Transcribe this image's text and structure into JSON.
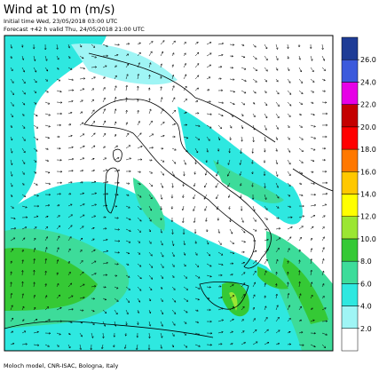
{
  "header": {
    "title": "Wind at 10 m (m/s)",
    "initial_time": "Initial time  Wed, 23/05/2018 03:00 UTC",
    "forecast": "Forecast +42 h valid  Thu, 24/05/2018 21:00 UTC"
  },
  "colorbar": {
    "ticks": [
      {
        "value": 2,
        "label": "2.0"
      },
      {
        "value": 4,
        "label": "4.0"
      },
      {
        "value": 6,
        "label": "6.0"
      },
      {
        "value": 8,
        "label": "8.0"
      },
      {
        "value": 10,
        "label": "10.0"
      },
      {
        "value": 12,
        "label": "12.0"
      },
      {
        "value": 14,
        "label": "14.0"
      },
      {
        "value": 16,
        "label": "16.0"
      },
      {
        "value": 18,
        "label": "18.0"
      },
      {
        "value": 20,
        "label": "20.0"
      },
      {
        "value": 22,
        "label": "22.0"
      },
      {
        "value": 24,
        "label": "24.0"
      },
      {
        "value": 26,
        "label": "26.0"
      }
    ],
    "colors": [
      "#ffffff",
      "#9ff5f5",
      "#2ee8e0",
      "#3ddc9a",
      "#35c935",
      "#9be633",
      "#ffff00",
      "#ffc800",
      "#ff7800",
      "#ff0000",
      "#c40000",
      "#e600e6",
      "#3c5adc",
      "#1e3c96"
    ]
  },
  "footer": "Moloch model, CNR-ISAC, Bologna, Italy"
}
